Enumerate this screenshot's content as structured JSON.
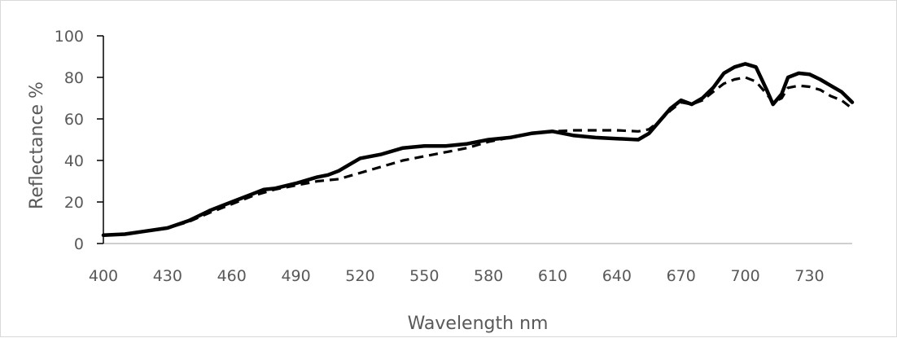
{
  "chart_data": {
    "type": "line",
    "title": "",
    "xlabel": "Wavelength nm",
    "ylabel": "Reflectance %",
    "xlim": [
      400,
      750
    ],
    "ylim": [
      0,
      100
    ],
    "x_ticks": [
      400,
      430,
      460,
      490,
      520,
      550,
      580,
      610,
      640,
      670,
      700,
      730
    ],
    "y_ticks": [
      0,
      20,
      40,
      60,
      80,
      100
    ],
    "grid": false,
    "legend": "none",
    "series": [
      {
        "style": "solid",
        "color": "#000000",
        "points": [
          [
            400,
            4
          ],
          [
            410,
            4.5
          ],
          [
            420,
            6
          ],
          [
            430,
            7.5
          ],
          [
            440,
            11
          ],
          [
            450,
            16
          ],
          [
            460,
            20
          ],
          [
            470,
            24
          ],
          [
            475,
            26
          ],
          [
            480,
            26.5
          ],
          [
            490,
            29
          ],
          [
            500,
            32
          ],
          [
            505,
            33
          ],
          [
            510,
            35
          ],
          [
            515,
            38
          ],
          [
            520,
            41
          ],
          [
            530,
            43
          ],
          [
            540,
            46
          ],
          [
            550,
            47
          ],
          [
            560,
            47
          ],
          [
            570,
            48
          ],
          [
            580,
            50
          ],
          [
            590,
            51
          ],
          [
            600,
            53
          ],
          [
            610,
            54
          ],
          [
            620,
            52
          ],
          [
            630,
            51
          ],
          [
            640,
            50.5
          ],
          [
            650,
            50
          ],
          [
            655,
            53
          ],
          [
            660,
            59
          ],
          [
            665,
            65
          ],
          [
            670,
            69
          ],
          [
            675,
            67
          ],
          [
            680,
            70
          ],
          [
            685,
            75
          ],
          [
            690,
            82
          ],
          [
            695,
            85
          ],
          [
            700,
            86.5
          ],
          [
            705,
            85
          ],
          [
            710,
            74
          ],
          [
            713,
            67
          ],
          [
            717,
            72
          ],
          [
            720,
            80
          ],
          [
            725,
            82
          ],
          [
            730,
            81.5
          ],
          [
            735,
            79
          ],
          [
            740,
            76
          ],
          [
            745,
            73
          ],
          [
            750,
            68
          ]
        ]
      },
      {
        "style": "dashed",
        "color": "#000000",
        "points": [
          [
            400,
            4
          ],
          [
            410,
            4.5
          ],
          [
            420,
            6
          ],
          [
            430,
            7.5
          ],
          [
            440,
            10.5
          ],
          [
            450,
            15
          ],
          [
            460,
            19
          ],
          [
            470,
            23
          ],
          [
            480,
            26
          ],
          [
            490,
            28
          ],
          [
            500,
            30
          ],
          [
            510,
            31
          ],
          [
            520,
            34
          ],
          [
            530,
            37
          ],
          [
            540,
            40
          ],
          [
            550,
            42
          ],
          [
            560,
            44
          ],
          [
            570,
            46
          ],
          [
            580,
            49
          ],
          [
            590,
            51
          ],
          [
            600,
            53
          ],
          [
            610,
            54
          ],
          [
            620,
            54.5
          ],
          [
            630,
            54.5
          ],
          [
            640,
            54.5
          ],
          [
            650,
            54
          ],
          [
            655,
            55
          ],
          [
            660,
            59
          ],
          [
            665,
            64
          ],
          [
            670,
            68
          ],
          [
            675,
            67
          ],
          [
            680,
            69
          ],
          [
            685,
            73
          ],
          [
            690,
            77
          ],
          [
            695,
            79
          ],
          [
            700,
            80
          ],
          [
            705,
            78
          ],
          [
            710,
            72
          ],
          [
            713,
            68
          ],
          [
            717,
            70
          ],
          [
            720,
            75
          ],
          [
            725,
            76
          ],
          [
            730,
            75.5
          ],
          [
            735,
            74
          ],
          [
            740,
            71
          ],
          [
            745,
            69
          ],
          [
            750,
            65
          ]
        ]
      }
    ]
  }
}
